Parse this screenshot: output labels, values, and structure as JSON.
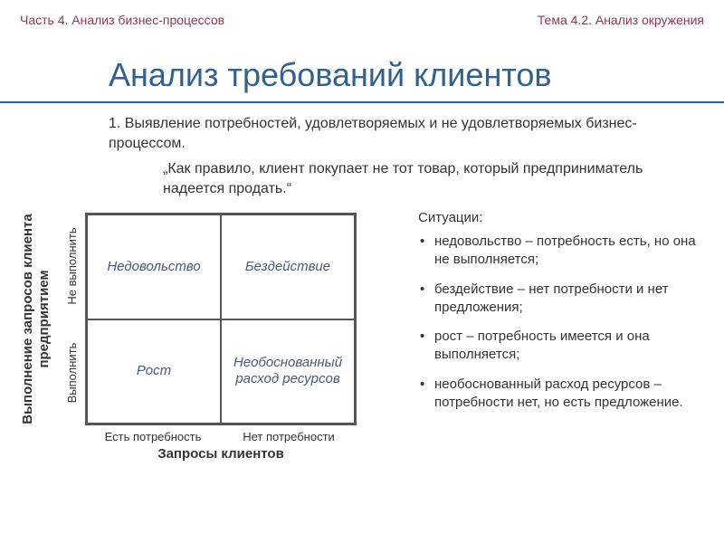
{
  "header": {
    "left": "Часть 4. Анализ бизнес-процессов",
    "right": "Тема 4.2. Анализ окружения"
  },
  "title": "Анализ требований клиентов",
  "intro": "1. Выявление потребностей, удовлетворяемых и не удовлетворяемых бизнес-процессом.",
  "quote": "„Как правило, клиент покупает не тот товар, который предприниматель надеется продать.“",
  "matrix": {
    "y_outer": "Выполнение запросов клиента предприятием",
    "y_inner_top": "Не выполнить",
    "y_inner_bot": "Выполнить",
    "x_outer": "Запросы клиентов",
    "x_sub_left": "Есть потребность",
    "x_sub_right": "Нет потребности",
    "cells": {
      "top_left": "Недовольство",
      "top_right": "Бездействие",
      "bot_left": "Рост",
      "bot_right": "Необоснованный расход ресурсов"
    },
    "border_color": "#555555",
    "cell_text_color": "#4a5a7a"
  },
  "situations": {
    "heading": "Ситуации:",
    "items": [
      "недовольство – потребность есть, но она не выполняется;",
      "бездействие – нет потребности и нет предложения;",
      "рост – потребность имеется и она выполняется;",
      "необоснованный расход ресурсов – потребности нет, но есть предложение."
    ]
  },
  "colors": {
    "header_text": "#8a3a5a",
    "title_text": "#30618f",
    "body_text": "#333333",
    "background": "#ffffff"
  },
  "fonts": {
    "title_size_pt": 28,
    "body_size_pt": 12,
    "header_size_pt": 11
  }
}
